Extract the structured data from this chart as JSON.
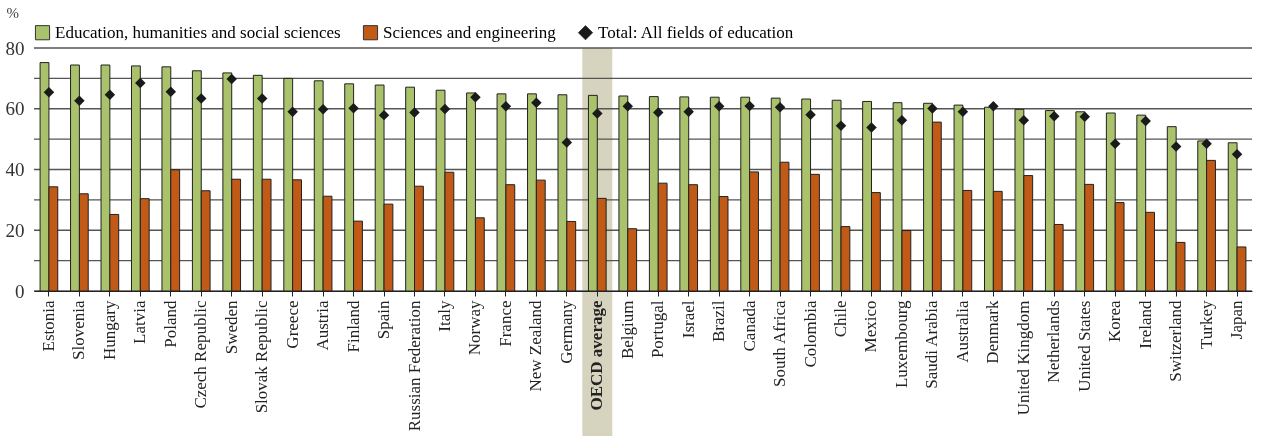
{
  "chart_data": {
    "type": "bar",
    "ylabel": "%",
    "categories": [
      "Estonia",
      "Slovenia",
      "Hungary",
      "Latvia",
      "Poland",
      "Czech Republic",
      "Sweden",
      "Slovak Republic",
      "Greece",
      "Austria",
      "Finland",
      "Spain",
      "Russian Federation",
      "Italy",
      "Norway",
      "France",
      "New Zealand",
      "Germany",
      "OECD average",
      "Belgium",
      "Portugal",
      "Israel",
      "Brazil",
      "Canada",
      "South Africa",
      "Colombia",
      "Chile",
      "Mexico",
      "Luxembourg",
      "Saudi Arabia",
      "Australia",
      "Denmark",
      "United Kingdom",
      "Netherlands",
      "United States",
      "Korea",
      "Ireland",
      "Switzerland",
      "Turkey",
      "Japan"
    ],
    "series": [
      {
        "name": "Education, humanities and social sciences",
        "color": "#a9c26b",
        "values": [
          75.2,
          74.4,
          74.4,
          74.1,
          73.8,
          72.5,
          71.8,
          71,
          70,
          69.2,
          68.2,
          67.8,
          67.1,
          66.1,
          65.2,
          64.9,
          64.9,
          64.6,
          64.4,
          64.2,
          64,
          63.9,
          63.8,
          63.8,
          63.5,
          63.2,
          62.8,
          62.4,
          62,
          61.8,
          61.2,
          60.5,
          59.8,
          59.4,
          59,
          58.6,
          57.9,
          54.1,
          49.4,
          48.8
        ]
      },
      {
        "name": "Sciences and engineering",
        "color": "#c05a16",
        "values": [
          34.3,
          32,
          25.2,
          30.4,
          39.9,
          33,
          36.8,
          36.8,
          36.6,
          31.2,
          23,
          28.6,
          34.5,
          39.1,
          24.1,
          35,
          36.5,
          22.9,
          30.5,
          20.5,
          35.5,
          35,
          31.1,
          39.2,
          42.4,
          38.4,
          21.2,
          32.4,
          19.9,
          55.6,
          33.1,
          32.8,
          38,
          21.9,
          35.1,
          29.1,
          25.9,
          16,
          43,
          14.5
        ]
      },
      {
        "name": "Total: All fields of education",
        "color": "#1a1a1a",
        "type": "scatter",
        "marker": "diamond",
        "values": [
          65.4,
          62.6,
          64.6,
          68.5,
          65.6,
          63.4,
          69.8,
          63.4,
          59,
          59.8,
          60.2,
          57.9,
          58.8,
          59.9,
          63.8,
          60.8,
          62,
          48.9,
          58.4,
          60.8,
          58.8,
          59,
          60.8,
          60.9,
          60.5,
          58,
          54.4,
          53.8,
          56.2,
          60.1,
          59,
          60.8,
          56.2,
          57.5,
          57.4,
          48.5,
          56,
          47.6,
          48.5,
          45
        ]
      }
    ],
    "ylim": [
      0,
      80
    ],
    "yticks": [
      0,
      {
        "value": 10,
        "label": null
      },
      20,
      {
        "value": 30,
        "label": null
      },
      40,
      {
        "value": 50,
        "label": null
      },
      60,
      {
        "value": 70,
        "label": null
      },
      80
    ],
    "bands": [
      {
        "axis": "x",
        "from": "OECD average",
        "to": "OECD average",
        "color": "#d6d4bf"
      }
    ],
    "grid": "y",
    "legend": "top"
  }
}
